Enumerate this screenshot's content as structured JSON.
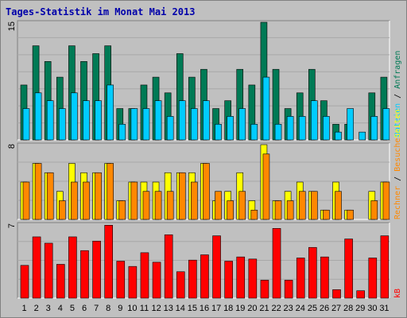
{
  "title": "Tages-Statistik im Monat Mai 2013",
  "colors": {
    "anfragen": "#007a55",
    "dateien": "#00ccff",
    "seiten": "#ffff00",
    "besuche": "#ff8800",
    "rechner": "#ff0000",
    "weekend_day": "#008040",
    "weekday": "#000000",
    "panel_bg": "#c0c0c0",
    "grid": "#808080"
  },
  "legend": {
    "anfragen": "Anfragen",
    "dateien": "Dateien",
    "seiten": "Seiten",
    "besuche": "Besuche",
    "rechner": "Rechner",
    "kb": "kB",
    "sep": "/"
  },
  "chart_data": [
    {
      "type": "bar",
      "panel": "top",
      "ymax_label": "15",
      "ylim": [
        0,
        15
      ],
      "x": [
        1,
        2,
        3,
        4,
        5,
        6,
        7,
        8,
        9,
        10,
        11,
        12,
        13,
        14,
        15,
        16,
        17,
        18,
        19,
        20,
        21,
        22,
        23,
        24,
        25,
        26,
        27,
        28,
        29,
        30,
        31
      ],
      "series": [
        {
          "name": "Anfragen",
          "values": [
            7,
            12,
            10,
            8,
            12,
            10,
            11,
            12,
            4,
            4,
            7,
            8,
            6,
            11,
            8,
            9,
            4,
            5,
            9,
            7,
            15,
            9,
            4,
            6,
            9,
            5,
            2,
            2,
            0,
            6,
            8
          ]
        },
        {
          "name": "Dateien",
          "values": [
            4,
            6,
            5,
            4,
            6,
            5,
            5,
            7,
            2,
            4,
            4,
            5,
            3,
            5,
            4,
            5,
            2,
            3,
            4,
            2,
            8,
            2,
            3,
            3,
            5,
            3,
            1,
            4,
            1,
            3,
            4
          ]
        }
      ]
    },
    {
      "type": "bar",
      "panel": "middle",
      "ymax_label": "8",
      "ylim": [
        0,
        8
      ],
      "x": [
        1,
        2,
        3,
        4,
        5,
        6,
        7,
        8,
        9,
        10,
        11,
        12,
        13,
        14,
        15,
        16,
        17,
        18,
        19,
        20,
        21,
        22,
        23,
        24,
        25,
        26,
        27,
        28,
        29,
        30,
        31
      ],
      "series": [
        {
          "name": "Seiten",
          "values": [
            4,
            6,
            5,
            3,
            6,
            5,
            5,
            6,
            2,
            4,
            4,
            4,
            5,
            5,
            5,
            6,
            2,
            3,
            5,
            2,
            8,
            2,
            3,
            4,
            3,
            1,
            4,
            1,
            0,
            3,
            4
          ]
        },
        {
          "name": "Besuche",
          "values": [
            4,
            6,
            5,
            2,
            4,
            4,
            5,
            6,
            2,
            4,
            3,
            3,
            3,
            5,
            4,
            6,
            3,
            2,
            3,
            1,
            7,
            2,
            2,
            3,
            3,
            1,
            3,
            1,
            0,
            2,
            4
          ]
        }
      ]
    },
    {
      "type": "bar",
      "panel": "bottom",
      "ymax_label": "7",
      "ylim": [
        0,
        7
      ],
      "x": [
        1,
        2,
        3,
        4,
        5,
        6,
        7,
        8,
        9,
        10,
        11,
        12,
        13,
        14,
        15,
        16,
        17,
        18,
        19,
        20,
        21,
        22,
        23,
        24,
        25,
        26,
        27,
        28,
        29,
        30,
        31
      ],
      "series": [
        {
          "name": "kB",
          "values": [
            3.1,
            5.8,
            5.2,
            3.2,
            5.8,
            4.5,
            5.4,
            6.9,
            3.5,
            3.0,
            4.3,
            3.4,
            6.0,
            2.5,
            3.6,
            4.1,
            5.9,
            3.5,
            3.9,
            3.7,
            1.7,
            6.6,
            1.7,
            3.8,
            4.8,
            3.9,
            0.8,
            5.6,
            0.7,
            3.8,
            5.9
          ]
        }
      ]
    }
  ],
  "x_labels": [
    "1",
    "2",
    "3",
    "4",
    "5",
    "6",
    "7",
    "8",
    "9",
    "10",
    "11",
    "12",
    "13",
    "14",
    "15",
    "16",
    "17",
    "18",
    "19",
    "20",
    "21",
    "22",
    "23",
    "24",
    "25",
    "26",
    "27",
    "28",
    "29",
    "30",
    "31"
  ],
  "weekend_days": [
    4,
    5,
    11,
    12,
    18,
    19,
    25,
    26
  ]
}
